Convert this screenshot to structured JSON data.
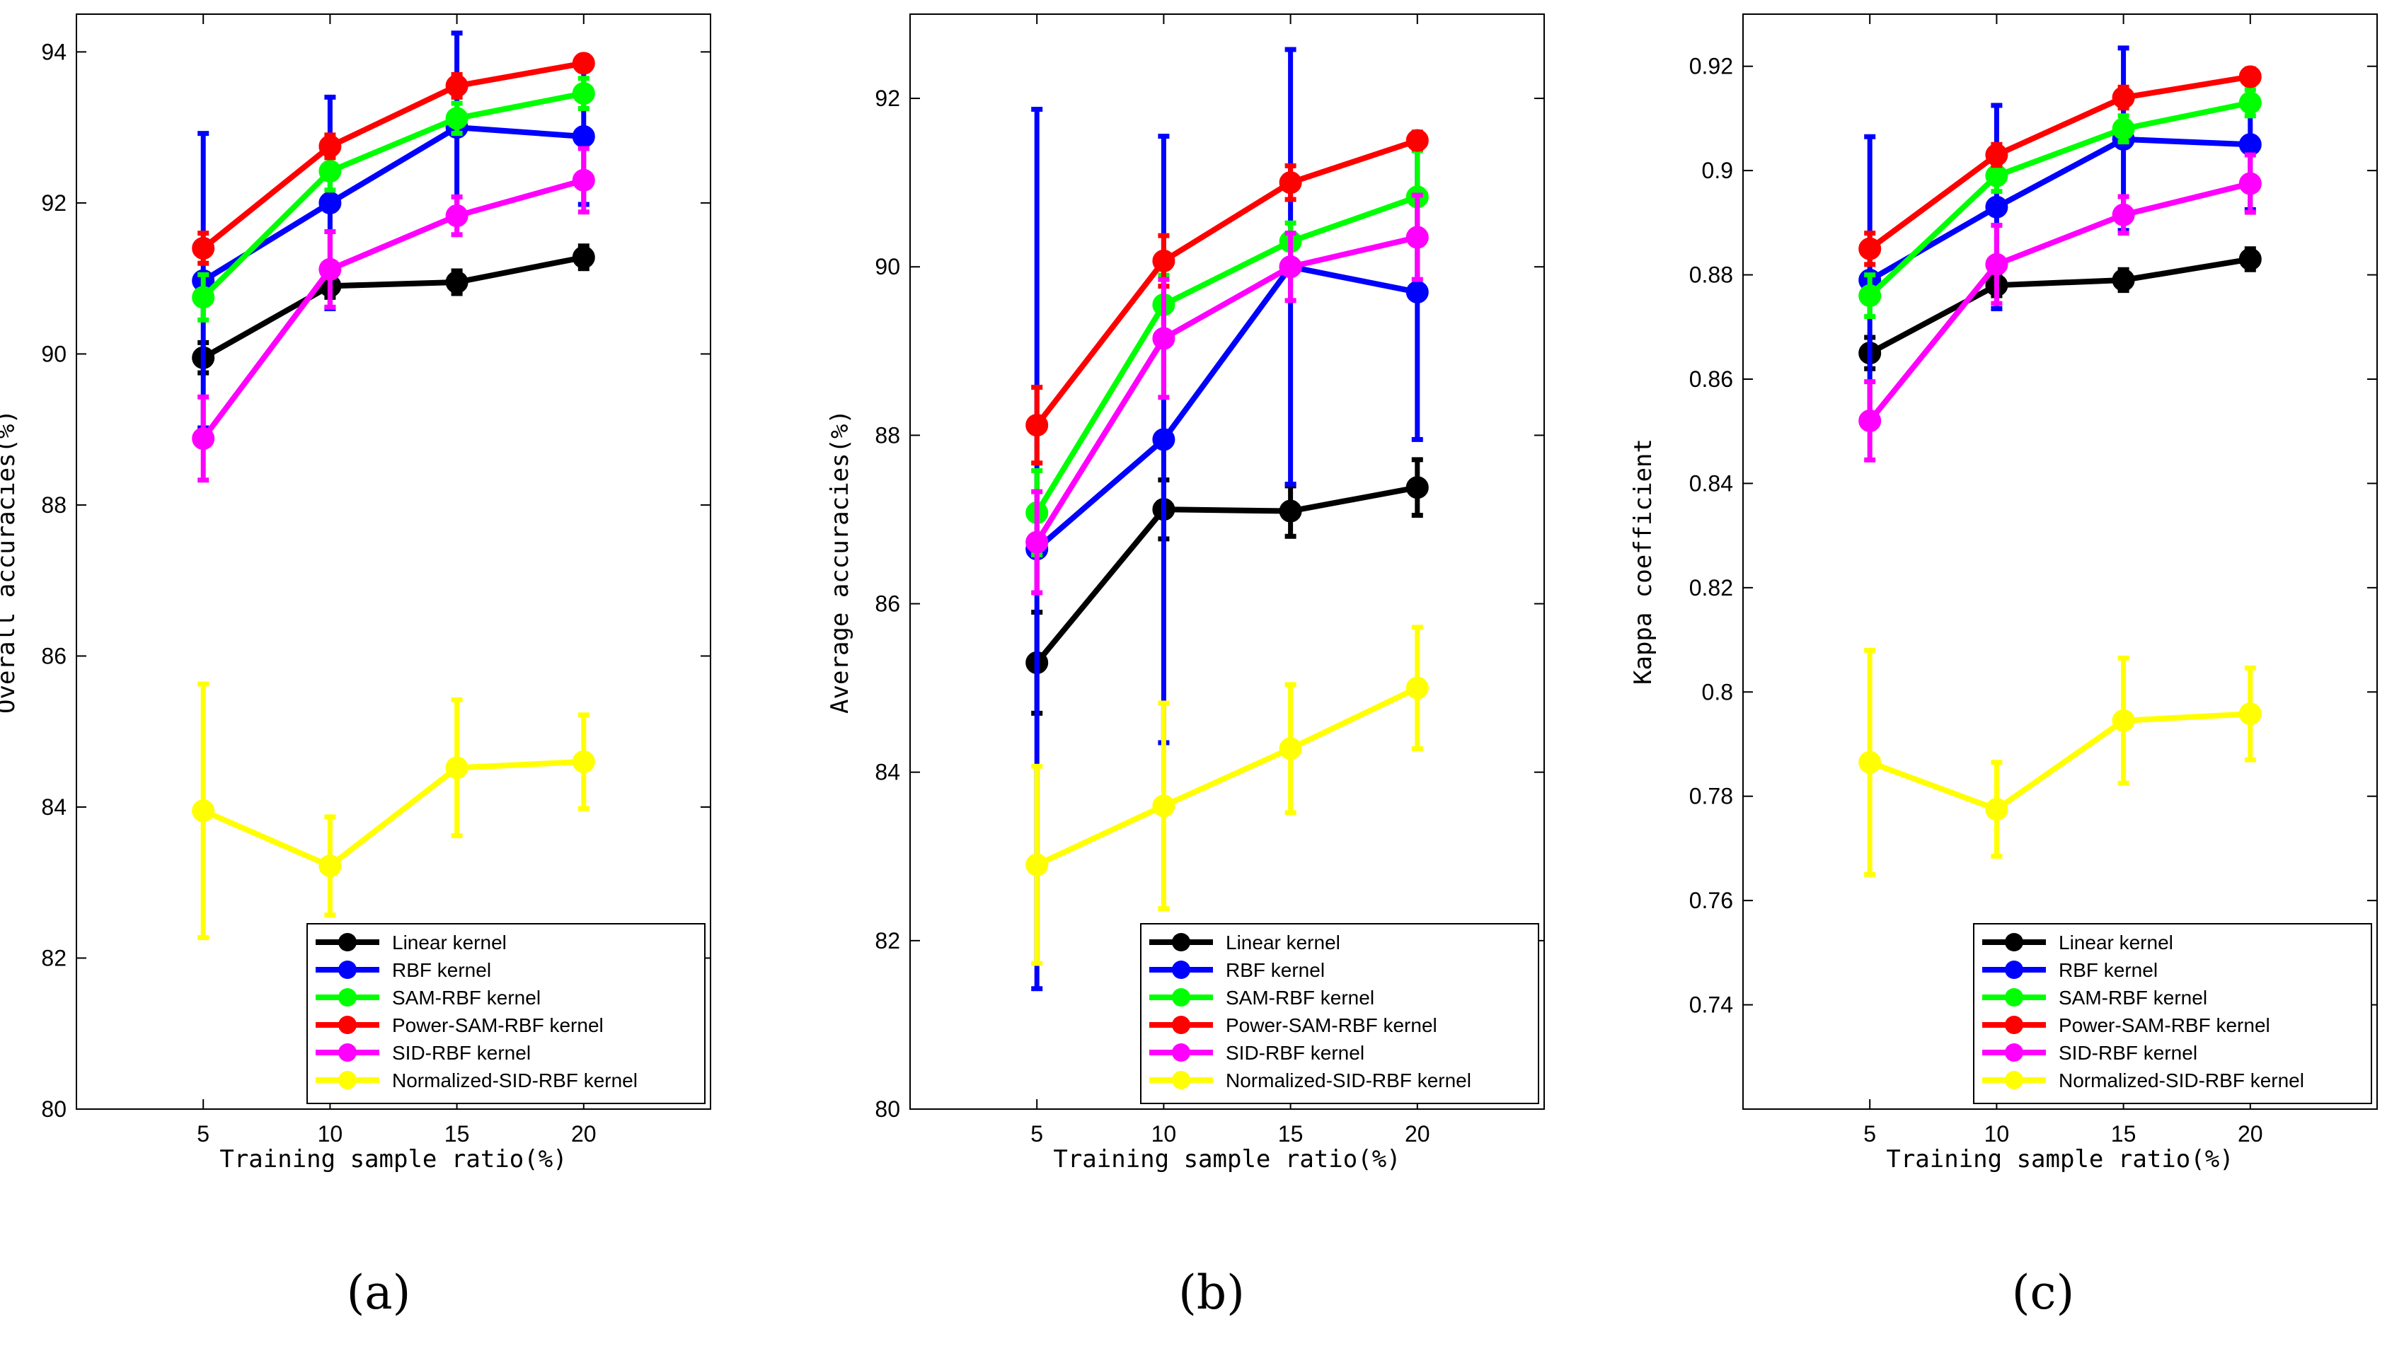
{
  "chart_data": [
    {
      "id": "a",
      "type": "line",
      "panel_label": "(a)",
      "xlabel": "Training sample ratio(%)",
      "ylabel": "Overall accuracies(%)",
      "categories": [
        5,
        10,
        15,
        20
      ],
      "xlim": [
        0,
        25
      ],
      "ylim": [
        80,
        94.5
      ],
      "x_ticks": [
        5,
        10,
        15,
        20
      ],
      "x_tick_labels": [
        "5",
        "10",
        "15",
        "20"
      ],
      "y_ticks": [
        80,
        82,
        84,
        86,
        88,
        90,
        92,
        94
      ],
      "y_tick_labels": [
        "80",
        "82",
        "84",
        "86",
        "88",
        "90",
        "92",
        "94"
      ],
      "legend_position": "bottom-right",
      "series": [
        {
          "name": "Linear kernel",
          "color": "#000000",
          "values": [
            89.95,
            90.9,
            90.95,
            91.28
          ],
          "err": [
            0.2,
            0.15,
            0.15,
            0.15
          ]
        },
        {
          "name": "RBF kernel",
          "color": "#0000ff",
          "values": [
            90.97,
            92.0,
            93.0,
            92.88
          ],
          "err": [
            1.95,
            1.4,
            1.25,
            0.9
          ]
        },
        {
          "name": "SAM-RBF kernel",
          "color": "#00ff00",
          "values": [
            90.75,
            92.42,
            93.12,
            93.45
          ],
          "err": [
            0.3,
            0.25,
            0.2,
            0.2
          ]
        },
        {
          "name": "Power-SAM-RBF kernel",
          "color": "#ff0000",
          "values": [
            91.4,
            92.75,
            93.55,
            93.85
          ],
          "err": [
            0.2,
            0.15,
            0.15,
            0.1
          ]
        },
        {
          "name": "SID-RBF kernel",
          "color": "#ff00ff",
          "values": [
            88.88,
            91.12,
            91.83,
            92.3
          ],
          "err": [
            0.55,
            0.5,
            0.25,
            0.42
          ]
        },
        {
          "name": "Normalized-SID-RBF kernel",
          "color": "#ffff00",
          "values": [
            83.95,
            83.22,
            84.52,
            84.6
          ],
          "err": [
            1.68,
            0.65,
            0.9,
            0.62
          ]
        }
      ]
    },
    {
      "id": "b",
      "type": "line",
      "panel_label": "(b)",
      "xlabel": "Training sample ratio(%)",
      "ylabel": "Average accuracies(%)",
      "categories": [
        5,
        10,
        15,
        20
      ],
      "xlim": [
        0,
        25
      ],
      "ylim": [
        80,
        93
      ],
      "x_ticks": [
        5,
        10,
        15,
        20
      ],
      "x_tick_labels": [
        "5",
        "10",
        "15",
        "20"
      ],
      "y_ticks": [
        80,
        82,
        84,
        86,
        88,
        90,
        92
      ],
      "y_tick_labels": [
        "80",
        "82",
        "84",
        "86",
        "88",
        "90",
        "92"
      ],
      "legend_position": "bottom-right",
      "series": [
        {
          "name": "Linear kernel",
          "color": "#000000",
          "values": [
            85.3,
            87.12,
            87.1,
            87.38
          ],
          "err": [
            0.6,
            0.35,
            0.3,
            0.33
          ]
        },
        {
          "name": "RBF kernel",
          "color": "#0000ff",
          "values": [
            86.65,
            87.95,
            90.0,
            89.7
          ],
          "err": [
            5.22,
            3.6,
            2.58,
            1.75
          ]
        },
        {
          "name": "SAM-RBF kernel",
          "color": "#00ff00",
          "values": [
            87.08,
            89.55,
            90.3,
            90.83
          ],
          "err": [
            0.5,
            0.35,
            0.22,
            0.55
          ]
        },
        {
          "name": "Power-SAM-RBF kernel",
          "color": "#ff0000",
          "values": [
            88.12,
            90.07,
            91.0,
            91.5
          ],
          "err": [
            0.45,
            0.3,
            0.2,
            0.1
          ]
        },
        {
          "name": "SID-RBF kernel",
          "color": "#ff00ff",
          "values": [
            86.73,
            89.15,
            90.0,
            90.35
          ],
          "err": [
            0.6,
            0.7,
            0.4,
            0.5
          ]
        },
        {
          "name": "Normalized-SID-RBF kernel",
          "color": "#ffff00",
          "values": [
            82.9,
            83.6,
            84.28,
            85.0
          ],
          "err": [
            1.17,
            1.22,
            0.76,
            0.72
          ]
        }
      ]
    },
    {
      "id": "c",
      "type": "line",
      "panel_label": "(c)",
      "xlabel": "Training sample ratio(%)",
      "ylabel": "Kappa coefficient",
      "categories": [
        5,
        10,
        15,
        20
      ],
      "xlim": [
        0,
        25
      ],
      "ylim": [
        0.72,
        0.93
      ],
      "x_ticks": [
        5,
        10,
        15,
        20
      ],
      "x_tick_labels": [
        "5",
        "10",
        "15",
        "20"
      ],
      "y_ticks": [
        0.74,
        0.76,
        0.78,
        0.8,
        0.82,
        0.84,
        0.86,
        0.88,
        0.9,
        0.92
      ],
      "y_tick_labels": [
        "0.74",
        "0.76",
        "0.78",
        "0.8",
        "0.82",
        "0.84",
        "0.86",
        "0.88",
        "0.9",
        "0.92"
      ],
      "legend_position": "bottom-right",
      "series": [
        {
          "name": "Linear kernel",
          "color": "#000000",
          "values": [
            0.865,
            0.878,
            0.879,
            0.883
          ],
          "err": [
            0.003,
            0.002,
            0.002,
            0.002
          ]
        },
        {
          "name": "RBF kernel",
          "color": "#0000ff",
          "values": [
            0.879,
            0.893,
            0.906,
            0.905
          ],
          "err": [
            0.0275,
            0.0195,
            0.0175,
            0.0125
          ]
        },
        {
          "name": "SAM-RBF kernel",
          "color": "#00ff00",
          "values": [
            0.876,
            0.899,
            0.908,
            0.913
          ],
          "err": [
            0.004,
            0.003,
            0.0025,
            0.0025
          ]
        },
        {
          "name": "Power-SAM-RBF kernel",
          "color": "#ff0000",
          "values": [
            0.885,
            0.903,
            0.914,
            0.918
          ],
          "err": [
            0.003,
            0.002,
            0.002,
            0.0015
          ]
        },
        {
          "name": "SID-RBF kernel",
          "color": "#ff00ff",
          "values": [
            0.852,
            0.882,
            0.8915,
            0.8975
          ],
          "err": [
            0.0075,
            0.0075,
            0.0035,
            0.0055
          ]
        },
        {
          "name": "Normalized-SID-RBF kernel",
          "color": "#ffff00",
          "values": [
            0.7865,
            0.7775,
            0.7945,
            0.7958
          ],
          "err": [
            0.0215,
            0.009,
            0.012,
            0.0088
          ]
        }
      ]
    }
  ]
}
